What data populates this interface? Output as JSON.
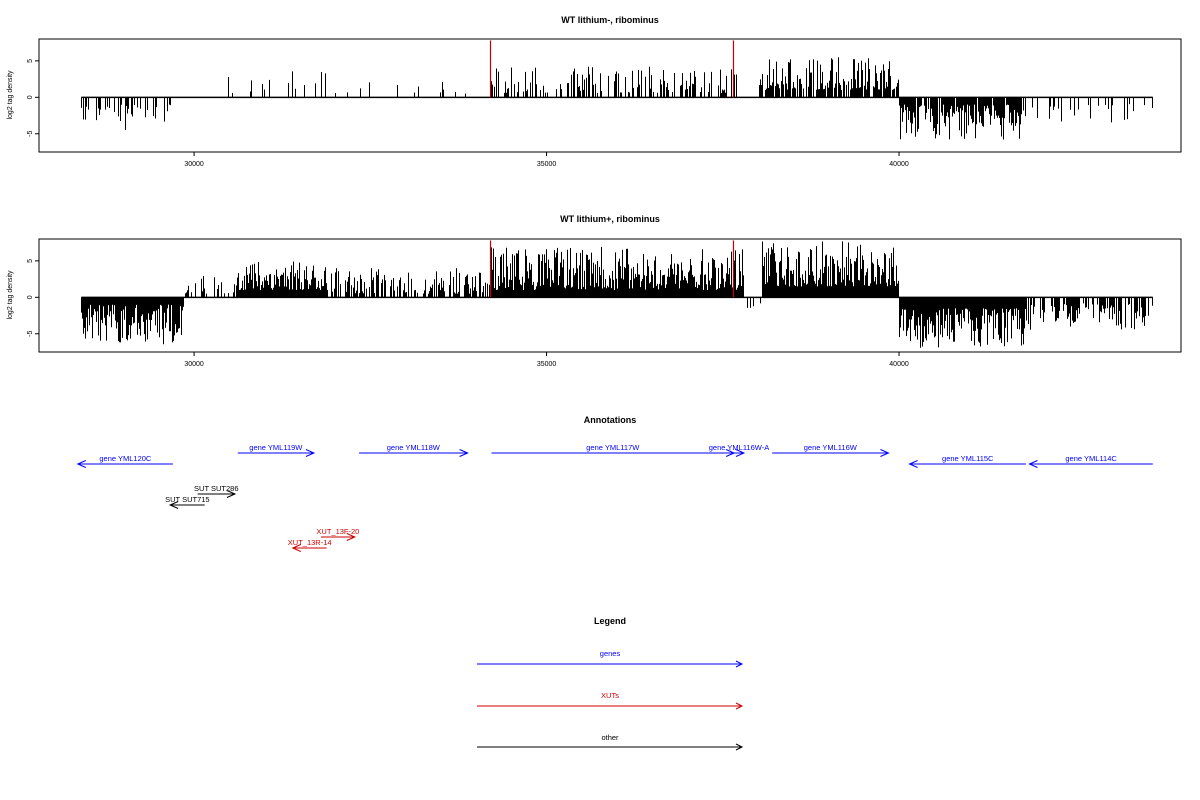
{
  "chart_data": [
    {
      "type": "bar",
      "title": "WT lithium-, ribominus",
      "ylabel": "log2 tag density",
      "xlim": [
        27800,
        44000
      ],
      "ylim": [
        -7.5,
        8
      ],
      "xticks": [
        30000,
        35000,
        40000
      ],
      "xtick_labels": [
        "30000",
        "35000",
        "40000"
      ],
      "yticks": [
        -5,
        0,
        5
      ],
      "ytick_labels": [
        "-5",
        "0",
        "5"
      ],
      "baseline": {
        "from": 28400,
        "to": 43600,
        "value": 0
      },
      "segments": [
        {
          "from": 28400,
          "to": 29700,
          "sign": -1,
          "density": 0.35,
          "min": 1.0,
          "max": 4.5
        },
        {
          "from": 29700,
          "to": 30700,
          "sign": 1,
          "density": 0.04,
          "min": 0.5,
          "max": 2.8
        },
        {
          "from": 30700,
          "to": 31900,
          "sign": 1,
          "density": 0.2,
          "min": 0.8,
          "max": 3.8
        },
        {
          "from": 31900,
          "to": 34200,
          "sign": 1,
          "density": 0.06,
          "min": 0.5,
          "max": 3.2
        },
        {
          "from": 34200,
          "to": 37700,
          "sign": 1,
          "density": 0.5,
          "min": 0.6,
          "max": 4.2
        },
        {
          "from": 37700,
          "to": 38000,
          "sign": -1,
          "density": 0.03,
          "min": 1.5,
          "max": 3.5
        },
        {
          "from": 38000,
          "to": 40000,
          "sign": 1,
          "density": 0.75,
          "min": 1.0,
          "max": 5.5
        },
        {
          "from": 40000,
          "to": 41800,
          "sign": -1,
          "density": 0.9,
          "min": 1.0,
          "max": 5.8
        },
        {
          "from": 41800,
          "to": 43600,
          "sign": -1,
          "density": 0.15,
          "min": 0.8,
          "max": 3.8
        }
      ],
      "highlights": [
        {
          "x": 34200,
          "y": 7.8,
          "color": "#cc0000"
        },
        {
          "x": 37650,
          "y": 7.8,
          "color": "#cc0000"
        }
      ],
      "seed": 11
    },
    {
      "type": "bar",
      "title": "WT lithium+, ribominus",
      "ylabel": "log2 tag density",
      "xlim": [
        27800,
        44000
      ],
      "ylim": [
        -7.5,
        8
      ],
      "xticks": [
        30000,
        35000,
        40000
      ],
      "xtick_labels": [
        "30000",
        "35000",
        "40000"
      ],
      "yticks": [
        -5,
        0,
        5
      ],
      "ytick_labels": [
        "-5",
        "0",
        "5"
      ],
      "baseline": {
        "from": 28400,
        "to": 43600,
        "value": 0
      },
      "segments": [
        {
          "from": 28400,
          "to": 29850,
          "sign": -1,
          "density": 1.0,
          "min": 1.0,
          "max": 6.5
        },
        {
          "from": 29850,
          "to": 30600,
          "sign": 1,
          "density": 0.25,
          "min": 0.5,
          "max": 3.0
        },
        {
          "from": 30600,
          "to": 31900,
          "sign": 1,
          "density": 1.0,
          "min": 1.0,
          "max": 5.5
        },
        {
          "from": 31900,
          "to": 34200,
          "sign": 1,
          "density": 0.6,
          "min": 0.5,
          "max": 4.0
        },
        {
          "from": 34200,
          "to": 37800,
          "sign": 1,
          "density": 1.0,
          "min": 1.0,
          "max": 7.0
        },
        {
          "from": 37800,
          "to": 38050,
          "sign": -1,
          "density": 0.2,
          "min": 0.8,
          "max": 2.5
        },
        {
          "from": 38050,
          "to": 40000,
          "sign": 1,
          "density": 1.0,
          "min": 1.5,
          "max": 7.8
        },
        {
          "from": 40000,
          "to": 41800,
          "sign": -1,
          "density": 1.0,
          "min": 1.5,
          "max": 7.0
        },
        {
          "from": 41800,
          "to": 43600,
          "sign": -1,
          "density": 0.6,
          "min": 0.8,
          "max": 4.5
        }
      ],
      "highlights": [
        {
          "x": 34200,
          "y": 7.8,
          "color": "#cc0000"
        },
        {
          "x": 37650,
          "y": 7.8,
          "color": "#cc0000"
        }
      ],
      "seed": 23
    }
  ],
  "annotations": {
    "title": "Annotations",
    "xlim": [
      27800,
      44000
    ],
    "features": [
      {
        "label": "gene YML120C",
        "start": 29700,
        "end": 28350,
        "row": 0,
        "color": "#0000ff"
      },
      {
        "label": "gene YML119W",
        "start": 30620,
        "end": 31700,
        "row": 1,
        "color": "#0000ff"
      },
      {
        "label": "gene YML118W",
        "start": 32340,
        "end": 33880,
        "row": 1,
        "color": "#0000ff"
      },
      {
        "label": "gene YML117W",
        "start": 34220,
        "end": 37660,
        "row": 1,
        "color": "#0000ff"
      },
      {
        "label": "gene YML116W-A",
        "start": 37660,
        "end": 37800,
        "row": 1,
        "color": "#0000ff"
      },
      {
        "label": "gene YML116W",
        "start": 38200,
        "end": 39850,
        "row": 1,
        "color": "#0000ff"
      },
      {
        "label": "gene YML115C",
        "start": 41800,
        "end": 40150,
        "row": 0,
        "color": "#0000ff"
      },
      {
        "label": "gene YML114C",
        "start": 43600,
        "end": 41850,
        "row": 0,
        "color": "#0000ff"
      },
      {
        "label": "SUT SUT286",
        "start": 30050,
        "end": 30580,
        "row": 2,
        "color": "#000000"
      },
      {
        "label": "SUT SUT715",
        "start": 30150,
        "end": 29660,
        "row": 3,
        "color": "#000000"
      },
      {
        "label": "XUT_13F-20",
        "start": 31800,
        "end": 32280,
        "row": 4,
        "color": "#cc0000"
      },
      {
        "label": "XUT_13R-14",
        "start": 31880,
        "end": 31400,
        "row": 5,
        "color": "#cc0000"
      }
    ]
  },
  "legend": {
    "title": "Legend",
    "items": [
      {
        "label": "genes",
        "color": "#0000ff"
      },
      {
        "label": "XUTs",
        "color": "#cc0000"
      },
      {
        "label": "other",
        "color": "#000000"
      }
    ]
  }
}
